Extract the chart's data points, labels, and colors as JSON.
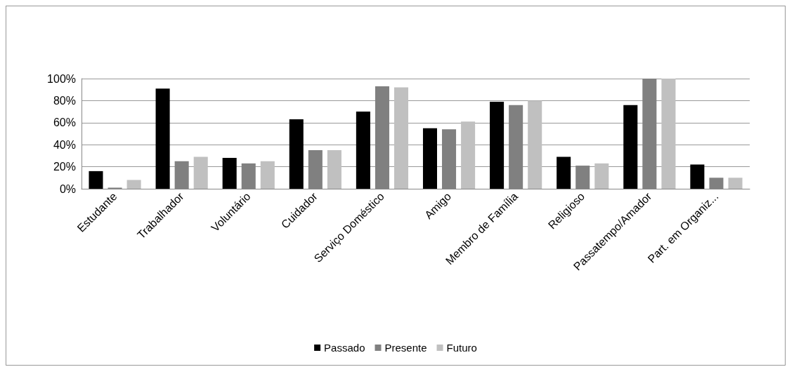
{
  "chart_data": {
    "type": "bar",
    "categories": [
      "Estudante",
      "Trabalhador",
      "Voluntário",
      "Cuidador",
      "Serviço Doméstico",
      "Amigo",
      "Membro de Família",
      "Religioso",
      "Passatempo/Amador",
      "Part. em Organiz..."
    ],
    "series": [
      {
        "name": "Passado",
        "color": "#000000",
        "values": [
          16,
          91,
          28,
          63,
          70,
          55,
          79,
          29,
          76,
          22
        ]
      },
      {
        "name": "Presente",
        "color": "#808080",
        "values": [
          1,
          25,
          23,
          35,
          93,
          54,
          76,
          21,
          100,
          10
        ]
      },
      {
        "name": "Futuro",
        "color": "#c0c0c0",
        "values": [
          8,
          29,
          25,
          35,
          92,
          61,
          80,
          23,
          100,
          10
        ]
      }
    ],
    "ylim": [
      0,
      100
    ],
    "yticks": [
      {
        "value": 0,
        "label": "0%"
      },
      {
        "value": 20,
        "label": "20%"
      },
      {
        "value": 40,
        "label": "40%"
      },
      {
        "value": 60,
        "label": "60%"
      },
      {
        "value": 80,
        "label": "80%"
      },
      {
        "value": 100,
        "label": "100%"
      }
    ],
    "grid": "y",
    "legend": "bottom"
  }
}
